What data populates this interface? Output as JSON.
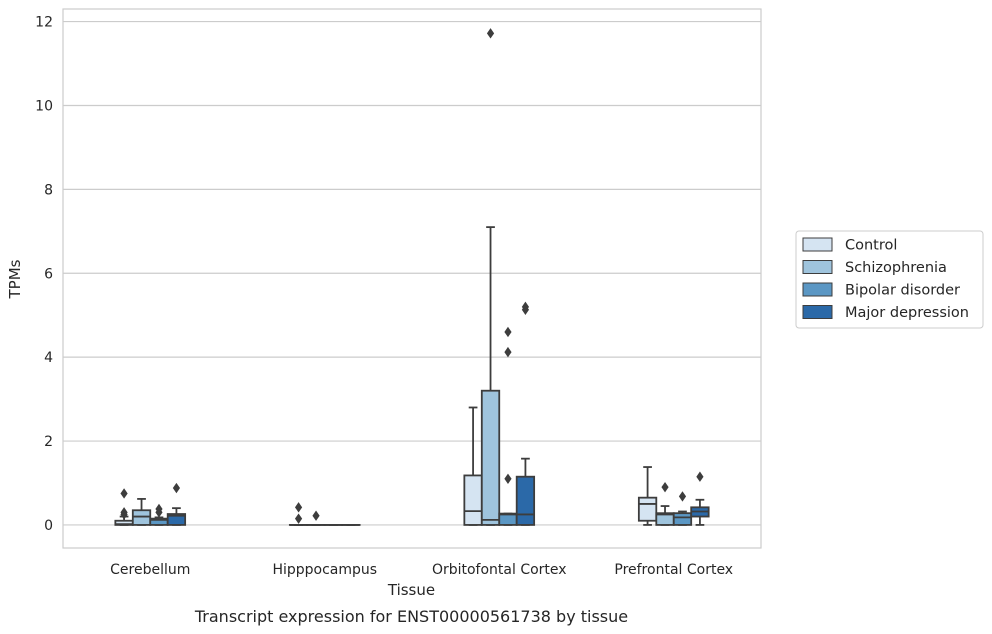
{
  "caption": "Transcript expression for ENST00000561738 by tissue",
  "chart_data": {
    "type": "box",
    "xlabel": "Tissue",
    "ylabel": "TPMs",
    "ylim": [
      -0.55,
      12.3
    ],
    "yticks": [
      0,
      2,
      4,
      6,
      8,
      10,
      12
    ],
    "grid": true,
    "legend_position": "right",
    "categories": [
      "Cerebellum",
      "Hipppocampus",
      "Orbitofontal Cortex",
      "Prefrontal Cortex"
    ],
    "series": [
      {
        "name": "Control",
        "color": "#d5e4f2",
        "boxes": [
          {
            "q1": 0.0,
            "median": 0.02,
            "q3": 0.1,
            "whislo": 0.0,
            "whishi": 0.2,
            "fliers": [
              0.25,
              0.3,
              0.75
            ]
          },
          {
            "q1": 0.0,
            "median": 0.0,
            "q3": 0.0,
            "whislo": 0.0,
            "whishi": 0.0,
            "fliers": [
              0.15,
              0.42
            ]
          },
          {
            "q1": 0.0,
            "median": 0.33,
            "q3": 1.18,
            "whislo": 0.0,
            "whishi": 2.8,
            "fliers": []
          },
          {
            "q1": 0.1,
            "median": 0.5,
            "q3": 0.65,
            "whislo": 0.0,
            "whishi": 1.38,
            "fliers": []
          }
        ]
      },
      {
        "name": "Schizophrenia",
        "color": "#9fc4dd",
        "boxes": [
          {
            "q1": 0.0,
            "median": 0.2,
            "q3": 0.35,
            "whislo": 0.0,
            "whishi": 0.62,
            "fliers": []
          },
          {
            "q1": 0.0,
            "median": 0.0,
            "q3": 0.0,
            "whislo": 0.0,
            "whishi": 0.0,
            "fliers": [
              0.22
            ]
          },
          {
            "q1": 0.0,
            "median": 0.12,
            "q3": 3.2,
            "whislo": 0.0,
            "whishi": 7.1,
            "fliers": [
              11.72
            ]
          },
          {
            "q1": 0.0,
            "median": 0.25,
            "q3": 0.28,
            "whislo": 0.0,
            "whishi": 0.45,
            "fliers": [
              0.9
            ]
          }
        ]
      },
      {
        "name": "Bipolar disorder",
        "color": "#5b97c4",
        "boxes": [
          {
            "q1": 0.0,
            "median": 0.12,
            "q3": 0.15,
            "whislo": 0.0,
            "whishi": 0.18,
            "fliers": [
              0.3,
              0.38
            ]
          },
          {
            "q1": 0.0,
            "median": 0.0,
            "q3": 0.0,
            "whislo": 0.0,
            "whishi": 0.0,
            "fliers": []
          },
          {
            "q1": 0.0,
            "median": 0.25,
            "q3": 0.27,
            "whislo": 0.0,
            "whishi": 0.27,
            "fliers": [
              1.1,
              4.12,
              4.6
            ]
          },
          {
            "q1": 0.0,
            "median": 0.18,
            "q3": 0.28,
            "whislo": 0.0,
            "whishi": 0.32,
            "fliers": [
              0.68
            ]
          }
        ]
      },
      {
        "name": "Major depression",
        "color": "#2b69a8",
        "boxes": [
          {
            "q1": 0.0,
            "median": 0.22,
            "q3": 0.26,
            "whislo": 0.0,
            "whishi": 0.4,
            "fliers": [
              0.88
            ]
          },
          {
            "q1": 0.0,
            "median": 0.0,
            "q3": 0.0,
            "whislo": 0.0,
            "whishi": 0.0,
            "fliers": []
          },
          {
            "q1": 0.0,
            "median": 0.25,
            "q3": 1.15,
            "whislo": 0.0,
            "whishi": 1.58,
            "fliers": [
              5.13,
              5.2
            ]
          },
          {
            "q1": 0.2,
            "median": 0.32,
            "q3": 0.42,
            "whislo": 0.0,
            "whishi": 0.6,
            "fliers": [
              1.15
            ]
          }
        ]
      }
    ]
  }
}
